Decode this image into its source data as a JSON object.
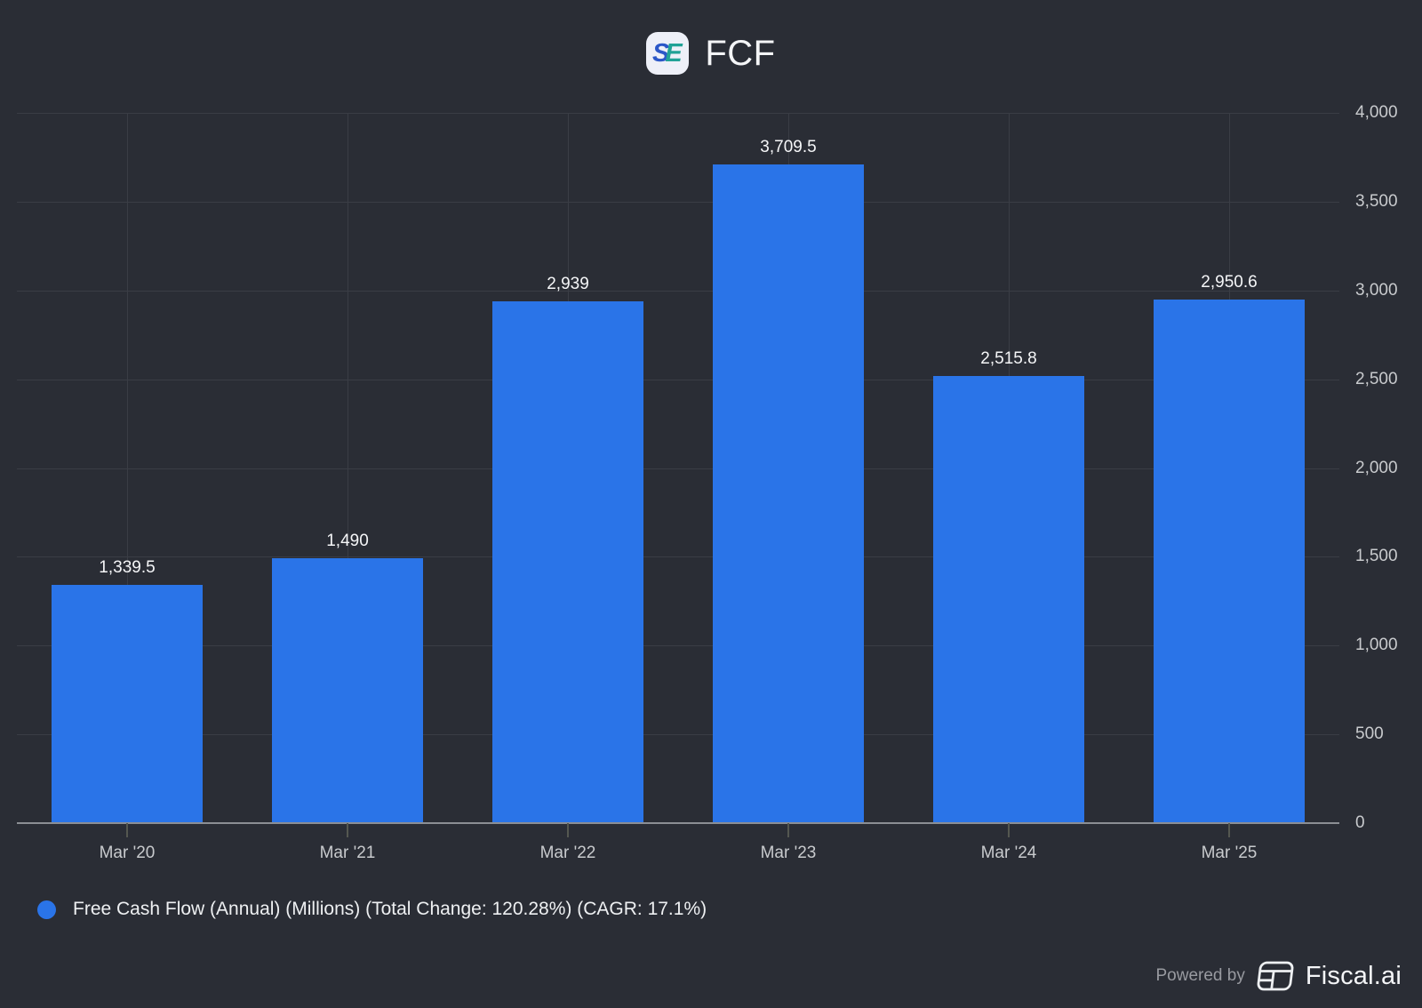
{
  "header": {
    "title": "FCF",
    "logo": {
      "letter1": "S",
      "letter2": "E"
    }
  },
  "chart_data": {
    "type": "bar",
    "title": "FCF",
    "categories": [
      "Mar '20",
      "Mar '21",
      "Mar '22",
      "Mar '23",
      "Mar '24",
      "Mar '25"
    ],
    "values": [
      1339.5,
      1490,
      2939,
      3709.5,
      2515.8,
      2950.6
    ],
    "value_labels": [
      "1,339.5",
      "1,490",
      "2,939",
      "3,709.5",
      "2,515.8",
      "2,950.6"
    ],
    "ylim": [
      0,
      4000
    ],
    "y_ticks": [
      0,
      500,
      1000,
      1500,
      2000,
      2500,
      3000,
      3500,
      4000
    ],
    "y_tick_labels": [
      "0",
      "500",
      "1,000",
      "1,500",
      "2,000",
      "2,500",
      "3,000",
      "3,500",
      "4,000"
    ],
    "y_axis_side": "right",
    "grid": true,
    "legend": [
      "Free Cash Flow (Annual) (Millions) (Total Change: 120.28%) (CAGR: 17.1%)"
    ],
    "legend_position": "bottom-left",
    "bar_color": "#2a74e8"
  },
  "footer": {
    "powered_by": "Powered by",
    "brand": "Fiscal.ai"
  },
  "colors": {
    "background": "#2a2d35",
    "bar": "#2a74e8",
    "gridline": "#3a3d45",
    "axis_line": "#8b8e94",
    "tick_label": "#c8cacd",
    "value_label": "#f5f6f8",
    "legend_text": "#eef0f2",
    "powered_by_text": "#989aa0",
    "brand_text": "#f4f5f7",
    "logo_bg": "#eef0f8",
    "logo_s": "#2b57c8",
    "logo_e": "#21a296"
  }
}
